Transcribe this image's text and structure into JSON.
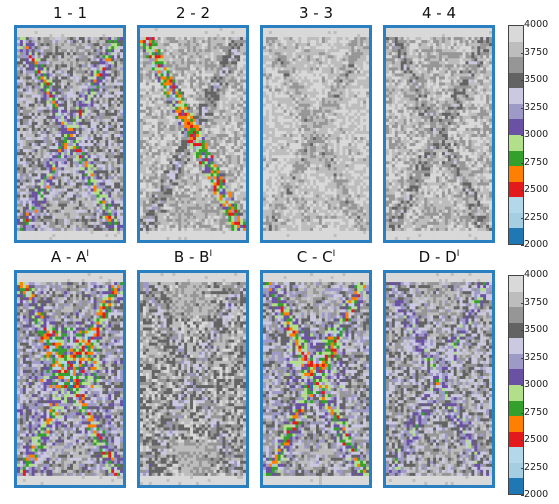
{
  "chart_data": {
    "type": "heatmap",
    "rows": [
      {
        "panels": [
          {
            "title": "1 - 1",
            "sup": ""
          },
          {
            "title": "2 - 2",
            "sup": ""
          },
          {
            "title": "3 - 3",
            "sup": ""
          },
          {
            "title": "4 - 4",
            "sup": ""
          }
        ],
        "colorbar": {
          "ticks": [
            "4000",
            "3750",
            "3500",
            "3250",
            "3000",
            "2750",
            "2500",
            "2250",
            "2000"
          ]
        }
      },
      {
        "panels": [
          {
            "title": "A - A",
            "sup": "I"
          },
          {
            "title": "B - B",
            "sup": "I"
          },
          {
            "title": "C - C",
            "sup": "I"
          },
          {
            "title": "D - D",
            "sup": "I"
          }
        ],
        "colorbar": {
          "ticks": [
            "4000",
            "3750",
            "3500",
            "3250",
            "3000",
            "2750",
            "2500",
            "2250",
            "2000"
          ]
        }
      }
    ],
    "vmin": 2000,
    "vmax": 4000,
    "colormap": [
      "#1f78b4",
      "#a6cee3",
      "#b2d8ea",
      "#e31a1c",
      "#ff7f00",
      "#33a02c",
      "#b2df8a",
      "#6a51a3",
      "#9e9ac8",
      "#cbc9e2",
      "#636363",
      "#969696",
      "#bdbdbd",
      "#d9d9d9"
    ]
  }
}
